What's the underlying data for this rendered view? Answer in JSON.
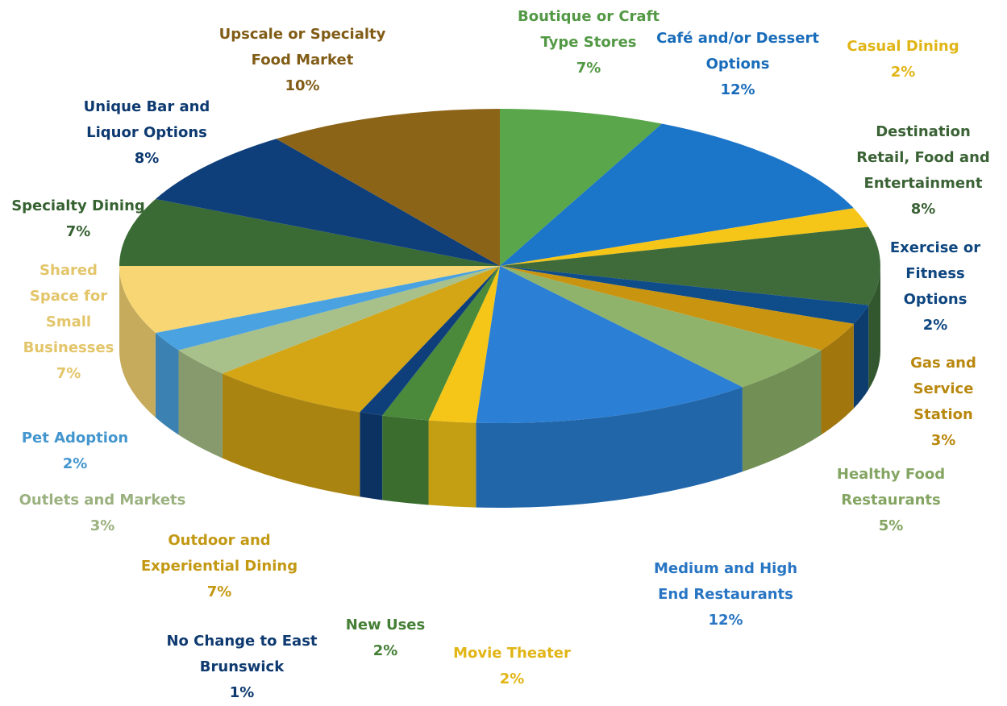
{
  "chart_data": {
    "type": "pie",
    "categories": [
      "Boutique or Craft Type Stores",
      "Café and/or Dessert Options",
      "Casual Dining",
      "Destination Retail, Food and Entertainment",
      "Exercise or Fitness Options",
      "Gas and Service Station",
      "Healthy Food Restaurants",
      "Medium and High End Restaurants",
      "Movie Theater",
      "New Uses",
      "No Change to East Brunswick",
      "Outdoor and Experiential Dining",
      "Outlets and Markets",
      "Pet Adoption",
      "Shared Space for Small Businesses",
      "Specialty Dining",
      "Unique Bar and Liquor Options",
      "Upscale or Specialty Food Market"
    ],
    "values": [
      7,
      12,
      2,
      8,
      2,
      3,
      5,
      12,
      2,
      2,
      1,
      7,
      3,
      2,
      7,
      7,
      8,
      10
    ],
    "value_labels": [
      "7%",
      "12%",
      "2%",
      "8%",
      "2%",
      "3%",
      "5%",
      "12%",
      "2%",
      "2%",
      "1%",
      "7%",
      "3%",
      "2%",
      "7%",
      "7%",
      "8%",
      "10%"
    ],
    "colors": [
      "#5aa64b",
      "#1b75c9",
      "#f5c518",
      "#3f6b3a",
      "#0f4c8a",
      "#c99410",
      "#8fb36b",
      "#2b7fd4",
      "#f5c518",
      "#4a8a3a",
      "#0f3f7a",
      "#d4a514",
      "#a8c08a",
      "#4aa3e0",
      "#f7d673",
      "#3b6b35",
      "#0e3f7a",
      "#8c6418"
    ]
  }
}
